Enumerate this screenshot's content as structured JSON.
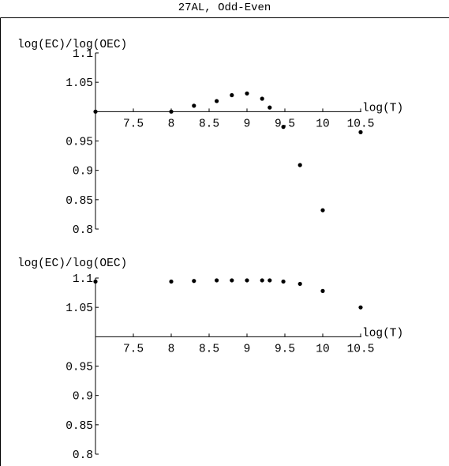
{
  "title": "27AL, Odd-Even",
  "colors": {
    "ink": "#000000",
    "background": "#ffffff"
  },
  "chart_data": [
    {
      "type": "scatter",
      "title": "",
      "xlabel": "log(T)",
      "ylabel": "log(EC)/log(OEC)",
      "xlim": [
        7.0,
        10.5
      ],
      "ylim": [
        0.8,
        1.1
      ],
      "axis_cross_y": 1.0,
      "x_ticks": [
        7.5,
        8,
        8.5,
        9,
        9.5,
        10,
        10.5
      ],
      "x_tick_labels": [
        "7.5",
        "8",
        "8.5",
        "9",
        "9.5",
        "10",
        "10.5"
      ],
      "y_ticks": [
        1.1,
        1.05,
        0.95,
        0.9,
        0.85,
        0.8
      ],
      "y_tick_labels": [
        "1.1",
        "1.05",
        "0.95",
        "0.9",
        "0.85",
        "0.8"
      ],
      "grid": false,
      "points": [
        {
          "x": 7.0,
          "y": 1.0
        },
        {
          "x": 8.0,
          "y": 1.0
        },
        {
          "x": 8.3,
          "y": 1.01
        },
        {
          "x": 8.6,
          "y": 1.018
        },
        {
          "x": 8.8,
          "y": 1.028
        },
        {
          "x": 9.0,
          "y": 1.031
        },
        {
          "x": 9.2,
          "y": 1.022
        },
        {
          "x": 9.3,
          "y": 1.007
        },
        {
          "x": 9.48,
          "y": 0.974
        },
        {
          "x": 9.7,
          "y": 0.909
        },
        {
          "x": 10.0,
          "y": 0.832
        },
        {
          "x": 10.5,
          "y": 0.965
        }
      ]
    },
    {
      "type": "scatter",
      "title": "",
      "xlabel": "log(T)",
      "ylabel": "log(EC)/log(OEC)",
      "xlim": [
        7.0,
        10.5
      ],
      "ylim": [
        0.8,
        1.1
      ],
      "axis_cross_y": 1.0,
      "x_ticks": [
        7.5,
        8,
        8.5,
        9,
        9.5,
        10,
        10.5
      ],
      "x_tick_labels": [
        "7.5",
        "8",
        "8.5",
        "9",
        "9.5",
        "10",
        "10.5"
      ],
      "y_ticks": [
        1.1,
        1.05,
        0.95,
        0.9,
        0.85,
        0.8
      ],
      "y_tick_labels": [
        "1.1",
        "1.05",
        "0.95",
        "0.9",
        "0.85",
        "0.8"
      ],
      "grid": false,
      "points": [
        {
          "x": 7.0,
          "y": 1.094
        },
        {
          "x": 8.0,
          "y": 1.094
        },
        {
          "x": 8.3,
          "y": 1.095
        },
        {
          "x": 8.6,
          "y": 1.096
        },
        {
          "x": 8.8,
          "y": 1.096
        },
        {
          "x": 9.0,
          "y": 1.096
        },
        {
          "x": 9.2,
          "y": 1.096
        },
        {
          "x": 9.3,
          "y": 1.096
        },
        {
          "x": 9.48,
          "y": 1.094
        },
        {
          "x": 9.7,
          "y": 1.09
        },
        {
          "x": 10.0,
          "y": 1.078
        },
        {
          "x": 10.5,
          "y": 1.05
        }
      ]
    }
  ]
}
